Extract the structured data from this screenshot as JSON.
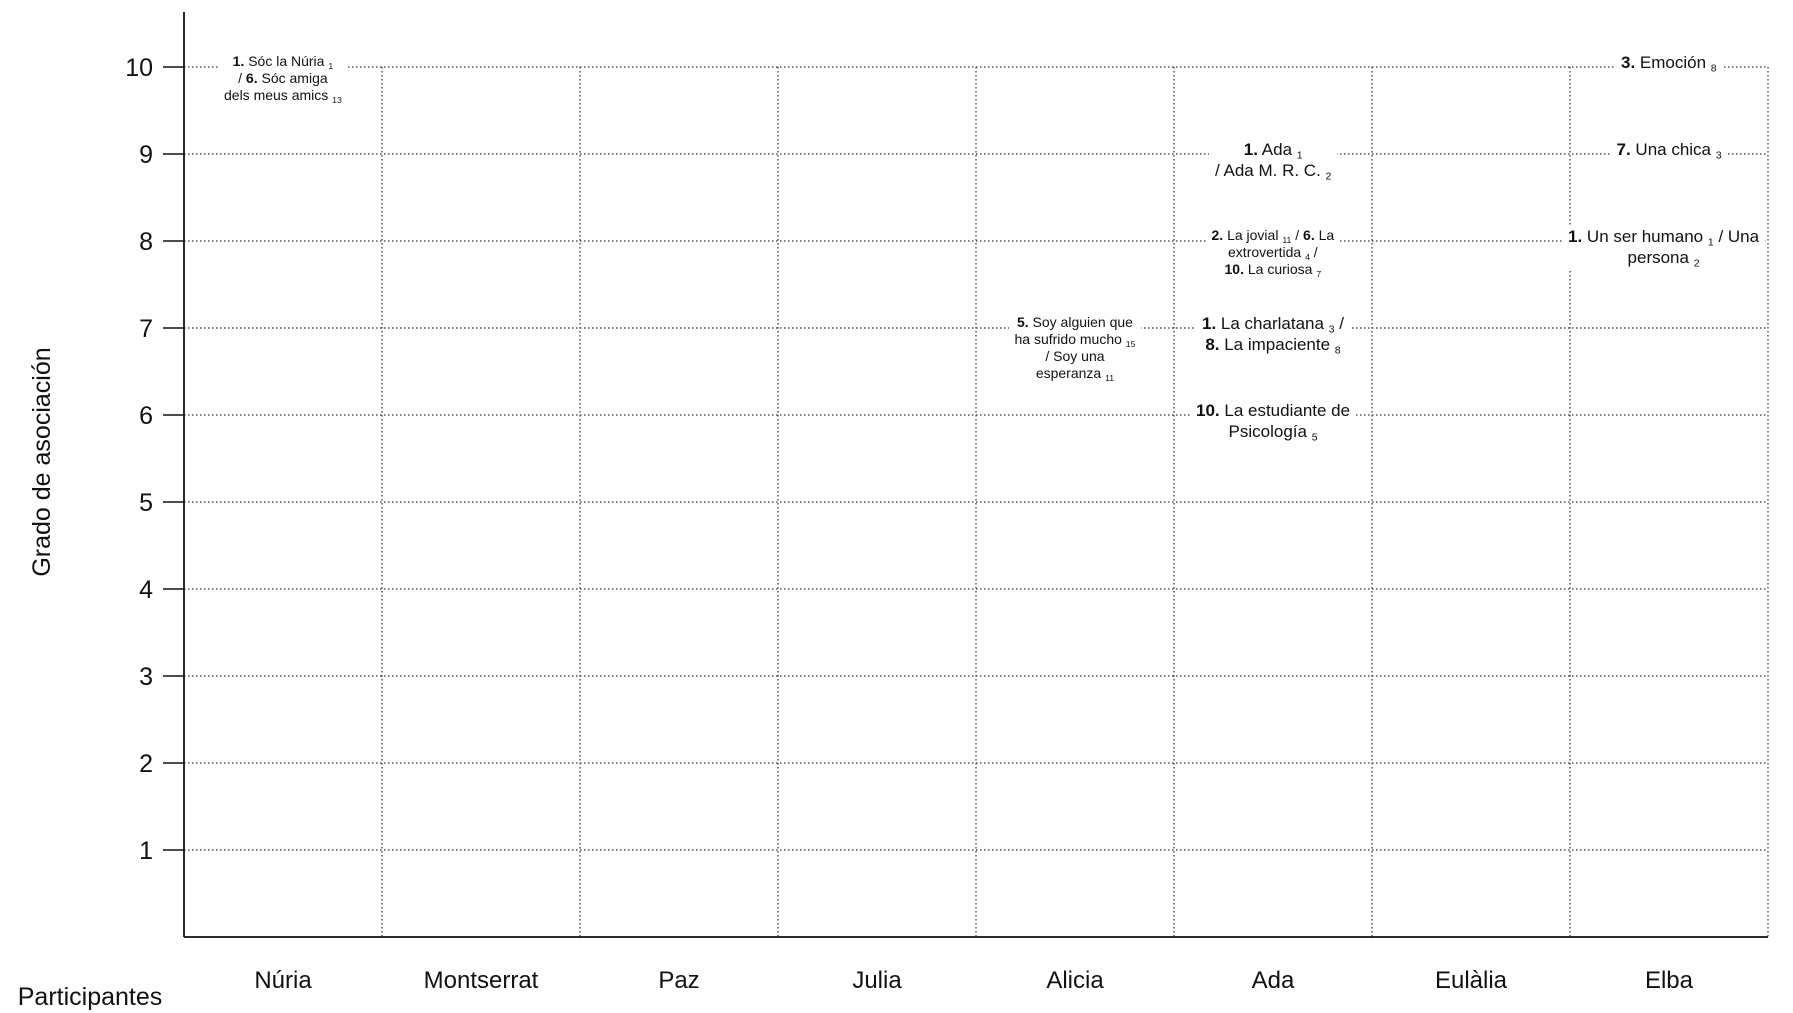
{
  "chart_data": {
    "type": "table",
    "xlabel": "Participantes",
    "ylabel": "Grado de asociación",
    "categories": [
      "Núria",
      "Montserrat",
      "Paz",
      "Julia",
      "Alicia",
      "Ada",
      "Eulàlia",
      "Elba"
    ],
    "ylim": [
      0,
      10
    ],
    "yticks": [
      1,
      2,
      3,
      4,
      5,
      6,
      7,
      8,
      9,
      10
    ],
    "grid": true,
    "annotations": [
      {
        "participant": "Núria",
        "y": 10,
        "parts": [
          {
            "t": "1.",
            "b": true
          },
          {
            "t": " Sóc la Núria "
          },
          {
            "t": "1",
            "sub": true
          },
          {
            "br": true
          },
          {
            "t": "/ "
          },
          {
            "t": "6.",
            "b": true
          },
          {
            "t": " Sóc amiga"
          },
          {
            "br": true
          },
          {
            "t": "dels meus amics "
          },
          {
            "t": "13",
            "sub": true
          }
        ]
      },
      {
        "participant": "Alicia",
        "y": 7,
        "parts": [
          {
            "t": "5.",
            "b": true
          },
          {
            "t": " Soy alguien que"
          },
          {
            "br": true
          },
          {
            "t": "ha sufrido mucho "
          },
          {
            "t": "15",
            "sub": true
          },
          {
            "br": true
          },
          {
            "t": "/ Soy una"
          },
          {
            "br": true
          },
          {
            "t": "esperanza "
          },
          {
            "t": "11",
            "sub": true
          }
        ]
      },
      {
        "participant": "Ada",
        "y": 9,
        "parts": [
          {
            "t": "1.",
            "b": true
          },
          {
            "t": " Ada "
          },
          {
            "t": "1",
            "sub": true
          },
          {
            "br": true
          },
          {
            "t": "/ Ada M. R. C. "
          },
          {
            "t": "2",
            "sub": true
          }
        ]
      },
      {
        "participant": "Ada",
        "y": 8,
        "parts": [
          {
            "t": "2.",
            "b": true
          },
          {
            "t": " La jovial "
          },
          {
            "t": "11",
            "sub": true
          },
          {
            "t": " / "
          },
          {
            "t": "6.",
            "b": true
          },
          {
            "t": " La"
          },
          {
            "br": true
          },
          {
            "t": "extrovertida "
          },
          {
            "t": "4",
            "sub": true
          },
          {
            "t": " /"
          },
          {
            "br": true
          },
          {
            "t": "10.",
            "b": true
          },
          {
            "t": " La curiosa "
          },
          {
            "t": "7",
            "sub": true
          }
        ]
      },
      {
        "participant": "Ada",
        "y": 7,
        "parts": [
          {
            "t": "1.",
            "b": true
          },
          {
            "t": " La charlatana "
          },
          {
            "t": "3",
            "sub": true
          },
          {
            "t": " /"
          },
          {
            "br": true
          },
          {
            "t": "8.",
            "b": true
          },
          {
            "t": " La impaciente "
          },
          {
            "t": "8",
            "sub": true
          }
        ]
      },
      {
        "participant": "Ada",
        "y": 6,
        "parts": [
          {
            "t": "10.",
            "b": true
          },
          {
            "t": " La estudiante de"
          },
          {
            "br": true
          },
          {
            "t": "Psicología "
          },
          {
            "t": "5",
            "sub": true
          }
        ]
      },
      {
        "participant": "Elba",
        "y": 10,
        "parts": [
          {
            "t": "3.",
            "b": true
          },
          {
            "t": " Emoción "
          },
          {
            "t": "8",
            "sub": true
          }
        ]
      },
      {
        "participant": "Elba",
        "y": 9,
        "parts": [
          {
            "t": "7.",
            "b": true
          },
          {
            "t": " Una chica "
          },
          {
            "t": "3",
            "sub": true
          }
        ]
      },
      {
        "participant": "Elba",
        "y": 8,
        "parts": [
          {
            "t": "1.",
            "b": true
          },
          {
            "t": " Un ser humano "
          },
          {
            "t": "1",
            "sub": true
          },
          {
            "t": " / Una"
          },
          {
            "br": true
          },
          {
            "t": "persona "
          },
          {
            "t": "2",
            "sub": true
          }
        ]
      }
    ]
  }
}
